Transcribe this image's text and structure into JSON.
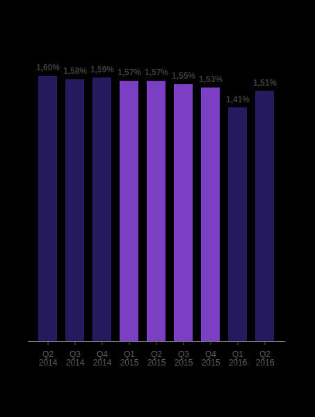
{
  "chart_data": {
    "type": "bar",
    "categories": [
      "Q2\n2014",
      "Q3\n2014",
      "Q4\n2014",
      "Q1\n2015",
      "Q2\n2015",
      "Q3\n2015",
      "Q4\n2015",
      "Q1\n2016",
      "Q2\n2016"
    ],
    "values": [
      1.6,
      1.58,
      1.59,
      1.57,
      1.57,
      1.55,
      1.53,
      1.41,
      1.51
    ],
    "value_labels": [
      "1,60%",
      "1,58%",
      "1,59%",
      "1,57%",
      "1,57%",
      "1,55%",
      "1,53%",
      "1,41%",
      "1,51%"
    ],
    "colors": [
      "#261a5e",
      "#261a5e",
      "#261a5e",
      "#7b3fc4",
      "#7b3fc4",
      "#7b3fc4",
      "#7b3fc4",
      "#261a5e",
      "#261a5e"
    ],
    "ylim": [
      0,
      1.6
    ],
    "data_labels": true,
    "tick_labels": "x",
    "grid": false
  }
}
